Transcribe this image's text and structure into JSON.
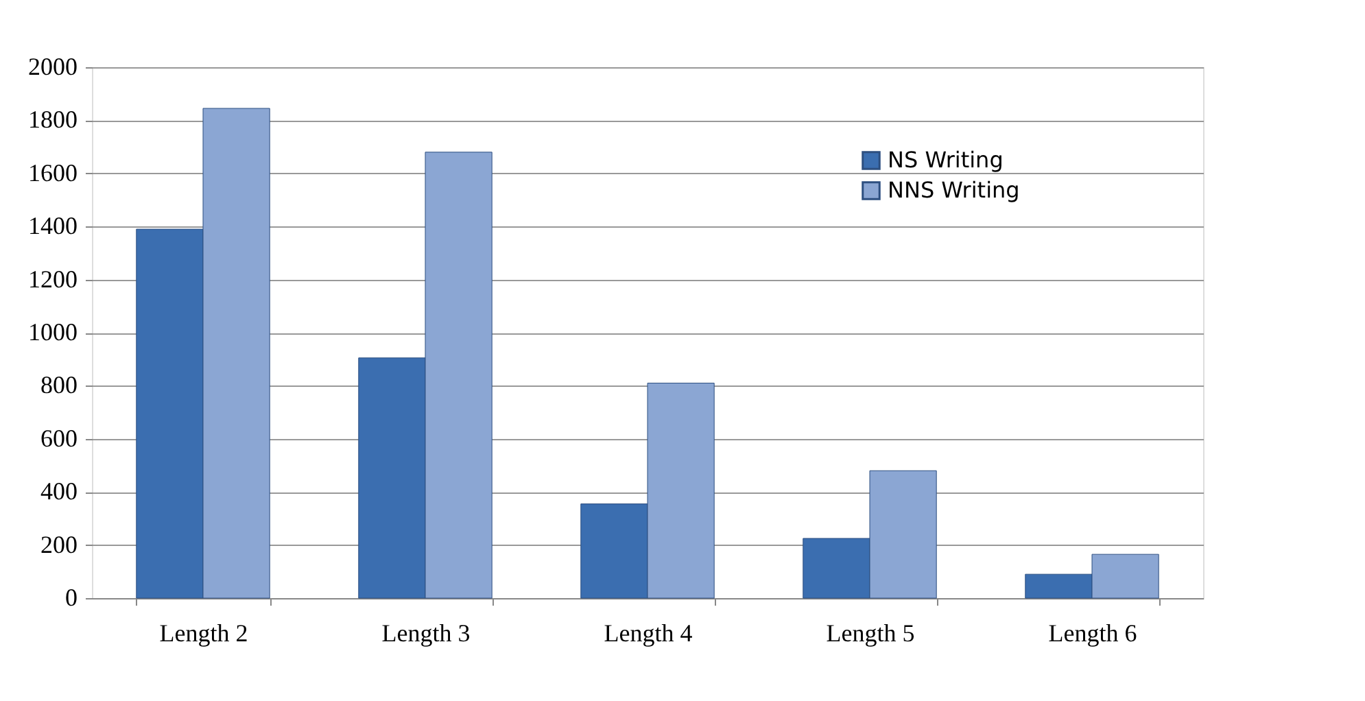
{
  "chart_data": {
    "type": "bar",
    "categories": [
      "Length 2",
      "Length 3",
      "Length 4",
      "Length 5",
      "Length 6"
    ],
    "series": [
      {
        "name": "NS Writing",
        "color": "#3b6eb0",
        "values": [
          1390,
          905,
          355,
          225,
          90
        ]
      },
      {
        "name": "NNS Writing",
        "color": "#8ba6d3",
        "values": [
          1845,
          1680,
          810,
          480,
          165
        ]
      }
    ],
    "ylim": [
      0,
      2000
    ],
    "yticks": [
      0,
      200,
      400,
      600,
      800,
      1000,
      1200,
      1400,
      1600,
      1800,
      2000
    ],
    "grid": "y",
    "legend": "top right"
  }
}
